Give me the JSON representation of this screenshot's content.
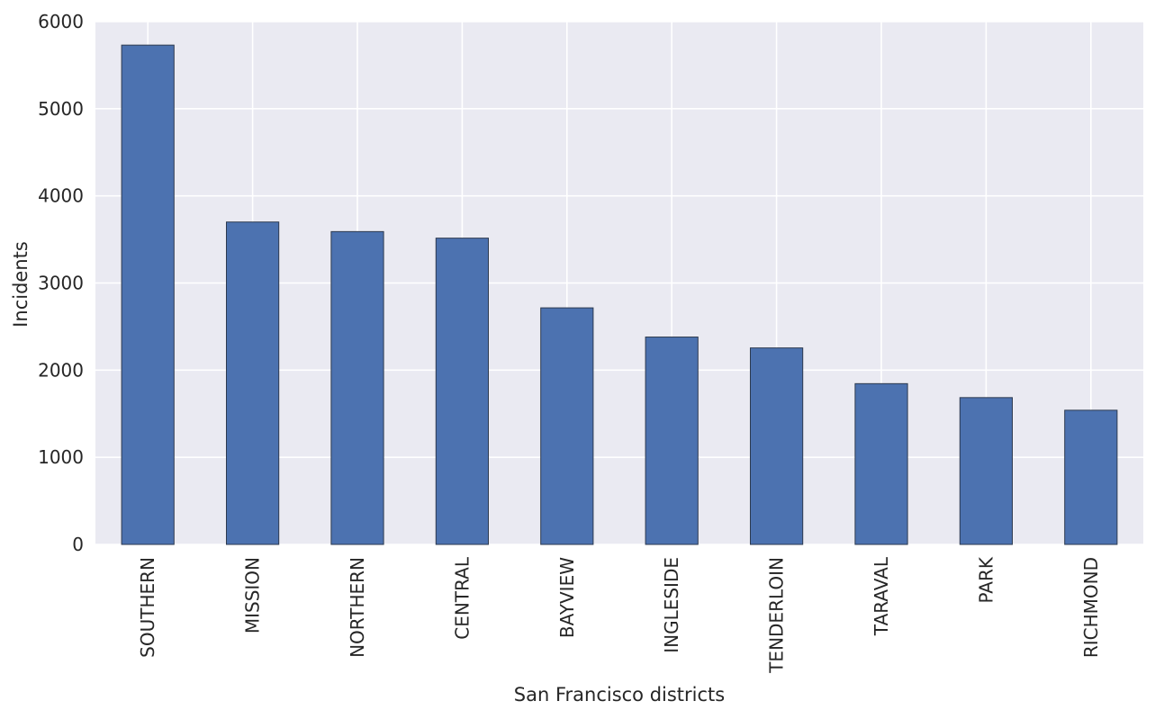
{
  "chart_data": {
    "type": "bar",
    "categories": [
      "SOUTHERN",
      "MISSION",
      "NORTHERN",
      "CENTRAL",
      "BAYVIEW",
      "INGLESIDE",
      "TENDERLOIN",
      "TARAVAL",
      "PARK",
      "RICHMOND"
    ],
    "values": [
      5730,
      3700,
      3590,
      3515,
      2715,
      2380,
      2255,
      1845,
      1685,
      1540
    ],
    "xlabel": "San Francisco districts",
    "ylabel": "Incidents",
    "ylim": [
      0,
      6000
    ],
    "yticks": [
      "0",
      "1000",
      "2000",
      "3000",
      "4000",
      "5000",
      "6000"
    ],
    "grid": true,
    "colors": {
      "bar": "#4c72b0",
      "bar_edge": "#2d3a4f",
      "plot_background": "#eaeaf2",
      "grid": "#ffffff"
    }
  }
}
